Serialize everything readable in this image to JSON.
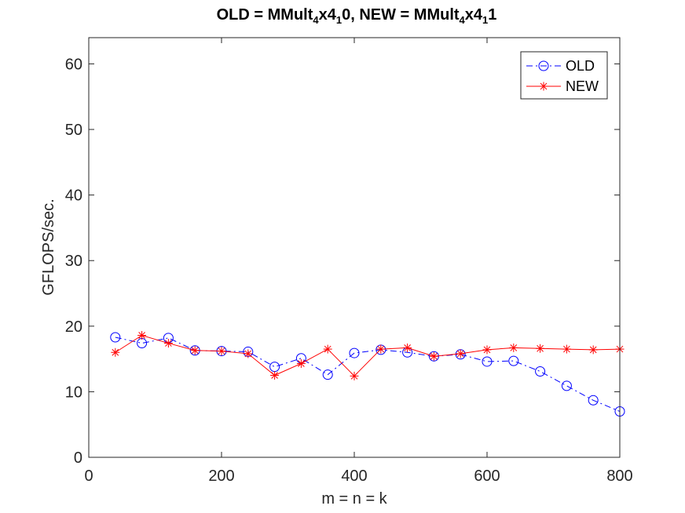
{
  "chart_data": {
    "type": "line",
    "title": {
      "prefix1": "OLD = MMult",
      "sub1": "4",
      "mid1": "x4",
      "sub2": "1",
      "suffix1": "0, NEW = MMult",
      "sub3": "4",
      "mid2": "x4",
      "sub4": "1",
      "suffix2": "1"
    },
    "xlabel": "m = n = k",
    "ylabel": "GFLOPS/sec.",
    "xlim": [
      0,
      800
    ],
    "ylim": [
      0,
      64
    ],
    "xticks": [
      0,
      200,
      400,
      600,
      800
    ],
    "yticks": [
      0,
      10,
      20,
      30,
      40,
      50,
      60
    ],
    "legend_position": "top-right",
    "grid": false,
    "x": [
      40,
      80,
      120,
      160,
      200,
      240,
      280,
      320,
      360,
      400,
      440,
      480,
      520,
      560,
      600,
      640,
      680,
      720,
      760,
      800
    ],
    "series": [
      {
        "name": "OLD",
        "color": "#0000ff",
        "marker": "circle",
        "line_style": "dash-dot",
        "values": [
          18.3,
          17.4,
          18.2,
          16.3,
          16.2,
          16.1,
          13.8,
          15.1,
          12.6,
          15.9,
          16.4,
          16.0,
          15.4,
          15.7,
          14.6,
          14.7,
          13.1,
          10.9,
          8.7,
          7.0
        ]
      },
      {
        "name": "NEW",
        "color": "#ff0000",
        "marker": "asterisk",
        "line_style": "solid",
        "values": [
          16.0,
          18.6,
          17.4,
          16.3,
          16.2,
          15.8,
          12.5,
          14.3,
          16.5,
          12.4,
          16.5,
          16.7,
          15.4,
          15.8,
          16.4,
          16.7,
          16.6,
          16.5,
          16.4,
          16.5
        ]
      }
    ]
  }
}
